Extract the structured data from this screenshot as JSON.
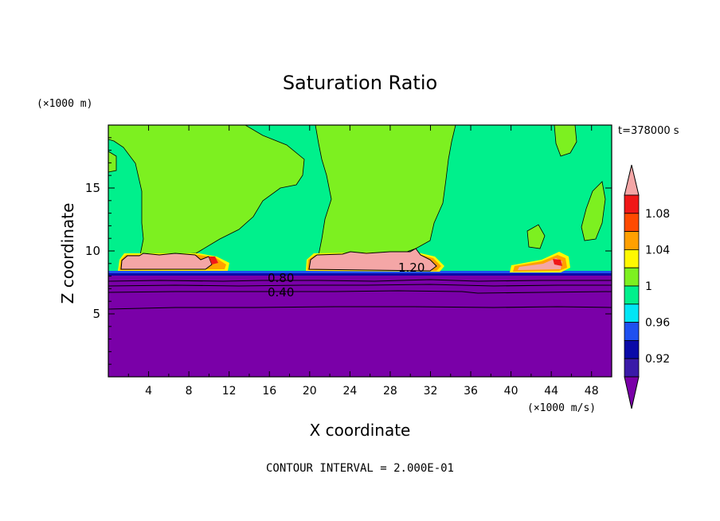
{
  "chart_data": {
    "type": "heatmap",
    "title": "Saturation Ratio",
    "xlabel": "X coordinate",
    "ylabel": "Z coordinate",
    "x_units": "(×1000 m/s)",
    "y_units": "(×1000 m)",
    "time_label": "t=378000 s",
    "contour_interval_label": "CONTOUR INTERVAL = 2.000E-01",
    "xlim": [
      0,
      50
    ],
    "ylim": [
      0,
      20
    ],
    "x_ticks": [
      4,
      8,
      12,
      16,
      20,
      24,
      28,
      32,
      36,
      40,
      44,
      48
    ],
    "y_ticks": [
      5,
      10,
      15
    ],
    "colorbar": {
      "labels": [
        "0.92",
        "0.96",
        "1",
        "1.04",
        "1.08"
      ],
      "levels": [
        0.92,
        0.94,
        0.96,
        0.98,
        1.0,
        1.02,
        1.04,
        1.06,
        1.08,
        1.1
      ],
      "colors": [
        "#7a00a8",
        "#3a1aa8",
        "#0a0aa8",
        "#1e50f0",
        "#00e6f5",
        "#00f08c",
        "#7df020",
        "#fff800",
        "#ffa000",
        "#ff4a00",
        "#f01818",
        "#f4a6a6"
      ]
    },
    "contour_labels": [
      {
        "text": "1.20",
        "x": 30.8,
        "z": 8.6
      },
      {
        "text": "0.80",
        "x": 17.5,
        "z": 7.9
      },
      {
        "text": "0.40",
        "x": 17.5,
        "z": 6.6
      }
    ],
    "regions": {
      "dry_layer_top_z": 8.1,
      "upper_background_value": ">1.00",
      "lower_layer_value": "<0.92",
      "cloud_bands": [
        {
          "x_range": [
            1,
            10
          ],
          "z_range": [
            8.2,
            9.8
          ],
          "value": ">1.10"
        },
        {
          "x_range": [
            19,
            32
          ],
          "z_range": [
            8.2,
            9.8
          ],
          "value": ">1.10"
        },
        {
          "x_range": [
            40,
            45.5
          ],
          "z_range": [
            8.3,
            9.4
          ],
          "value": "1.04–1.10"
        }
      ]
    },
    "legend_placement": "right"
  }
}
